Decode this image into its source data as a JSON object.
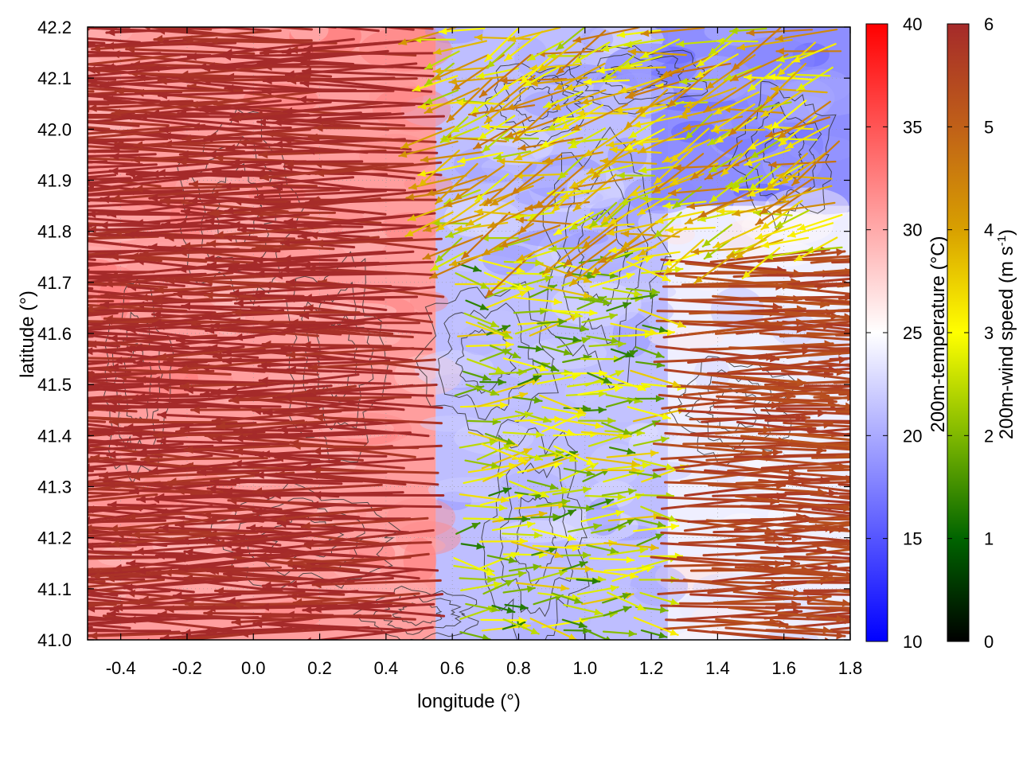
{
  "chart_data": {
    "type": "heatmap",
    "description_kind": "map with temperature field, wind vector overlay and terrain contours",
    "xlabel": "longitude (°)",
    "ylabel": "latitude (°)",
    "xlim": [
      -0.5,
      1.8
    ],
    "ylim": [
      41.0,
      42.2
    ],
    "xticks": [
      "-0.4",
      "-0.2",
      "0.0",
      "0.2",
      "0.4",
      "0.6",
      "0.8",
      "1.0",
      "1.2",
      "1.4",
      "1.6",
      "1.8"
    ],
    "yticks": [
      "41.0",
      "41.1",
      "41.2",
      "41.3",
      "41.4",
      "41.5",
      "41.6",
      "41.7",
      "41.8",
      "41.9",
      "42.0",
      "42.1",
      "42.2"
    ],
    "temperature_colorbar": {
      "label": "200m-temperature (°C)",
      "range": [
        10,
        40
      ],
      "ticks": [
        "10",
        "15",
        "20",
        "25",
        "30",
        "35",
        "40"
      ],
      "colors": [
        "#0000ff",
        "#ffffff",
        "#ff0000"
      ]
    },
    "wind_colorbar": {
      "label": "200m-wind speed (m s",
      "label_exp": "-1",
      "label_end": ")",
      "range": [
        0,
        6
      ],
      "ticks": [
        "0",
        "1",
        "2",
        "3",
        "4",
        "5",
        "6"
      ],
      "colors": [
        "#000000",
        "#006400",
        "#7fb800",
        "#ffff00",
        "#d8a000",
        "#c06018",
        "#a52a2a"
      ]
    },
    "temperature_regions": [
      {
        "name": "west-warm-sector",
        "lon_range": [
          -0.5,
          0.55
        ],
        "lat_range": [
          41.0,
          42.2
        ],
        "temp": 31
      },
      {
        "name": "central-cool-sector",
        "lon_range": [
          0.55,
          1.25
        ],
        "lat_range": [
          41.0,
          42.2
        ],
        "temp": 21
      },
      {
        "name": "east-mild-sector",
        "lon_range": [
          1.25,
          1.8
        ],
        "lat_range": [
          41.0,
          41.75
        ],
        "temp": 24
      },
      {
        "name": "northeast-cool-pocket",
        "lon_range": [
          1.2,
          1.8
        ],
        "lat_range": [
          41.85,
          42.2
        ],
        "temp": 18
      }
    ],
    "wind_regimes": [
      {
        "name": "westerly-strong",
        "lon_range": [
          -0.5,
          0.6
        ],
        "lat_range": [
          41.0,
          42.2
        ],
        "speed": 6,
        "direction_deg": 180
      },
      {
        "name": "convergence-weak",
        "lon_range": [
          0.6,
          1.2
        ],
        "lat_range": [
          41.0,
          42.2
        ],
        "speed": 2.5,
        "direction_deg": 0
      },
      {
        "name": "easterly-strong",
        "lon_range": [
          1.2,
          1.8
        ],
        "lat_range": [
          41.0,
          41.75
        ],
        "speed": 5.5,
        "direction_deg": 0
      },
      {
        "name": "northern-mixed",
        "lon_range": [
          0.6,
          1.8
        ],
        "lat_range": [
          41.75,
          42.2
        ],
        "speed": 3.5,
        "direction_deg": 200
      }
    ]
  }
}
